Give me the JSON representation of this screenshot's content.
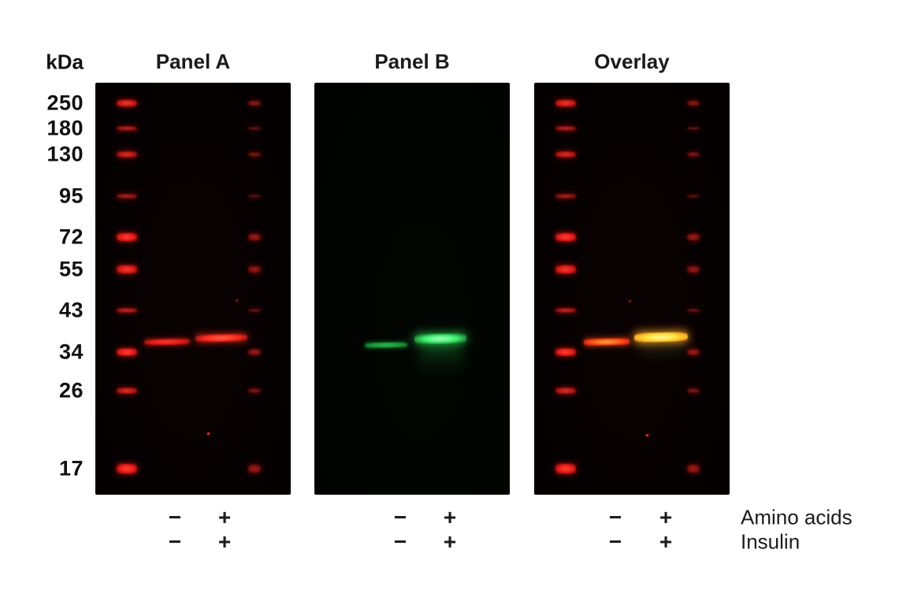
{
  "figure": {
    "unit_label": "kDa",
    "panel_titles": [
      "Panel A",
      "Panel B",
      "Overlay"
    ],
    "ladder_marks": [
      "250",
      "180",
      "130",
      "95",
      "72",
      "55",
      "43",
      "34",
      "26",
      "17"
    ],
    "conditions": [
      {
        "label": "Amino acids",
        "lane_signs": [
          "−",
          "+"
        ]
      },
      {
        "label": "Insulin",
        "lane_signs": [
          "−",
          "+"
        ]
      }
    ],
    "colors": {
      "red_channel": "#ea1410",
      "green_channel": "#3cf26a",
      "overlay_band": "#ffe63e",
      "panel_background": "#060101",
      "page_background": "#ffffff",
      "text": "#1b1b1b"
    }
  }
}
